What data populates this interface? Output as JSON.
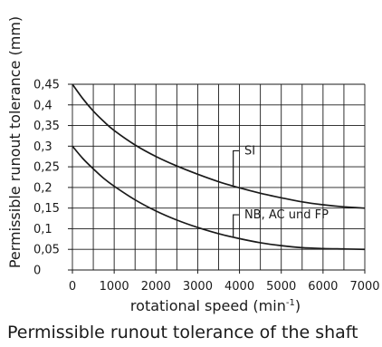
{
  "chart_data": {
    "type": "line",
    "ylabel": "Permissible runout tolerance (mm)",
    "xlabel_main": "rotational speed (min",
    "xlabel_sup": "-1",
    "xlabel_close": ")",
    "xlim": [
      0,
      7000
    ],
    "ylim": [
      0,
      0.45
    ],
    "x_ticks": [
      0,
      1000,
      2000,
      3000,
      4000,
      5000,
      6000,
      7000
    ],
    "x_tick_labels": [
      "0",
      "1000",
      "2000",
      "3000",
      "4000",
      "5000",
      "6000",
      "7000"
    ],
    "y_ticks": [
      0,
      0.05,
      0.1,
      0.15,
      0.2,
      0.25,
      0.3,
      0.35,
      0.4,
      0.45
    ],
    "y_tick_labels": [
      "0",
      "0,05",
      "0,1",
      "0,15",
      "0,2",
      "0,25",
      "0,3",
      "0,35",
      "0,4",
      "0,45"
    ],
    "grid": true,
    "series": [
      {
        "name": "SI",
        "x": [
          0,
          250,
          500,
          750,
          1000,
          1500,
          2000,
          2500,
          3000,
          3500,
          4000,
          4500,
          5000,
          5500,
          6000,
          6500,
          7000
        ],
        "y": [
          0.45,
          0.415,
          0.385,
          0.36,
          0.338,
          0.303,
          0.275,
          0.252,
          0.232,
          0.214,
          0.199,
          0.186,
          0.175,
          0.165,
          0.158,
          0.153,
          0.15
        ]
      },
      {
        "name": "NB, AC und FP",
        "x": [
          0,
          250,
          500,
          750,
          1000,
          1500,
          2000,
          2500,
          3000,
          3500,
          4000,
          4500,
          5000,
          5500,
          6000,
          6500,
          7000
        ],
        "y": [
          0.3,
          0.27,
          0.245,
          0.222,
          0.203,
          0.17,
          0.143,
          0.121,
          0.103,
          0.088,
          0.076,
          0.066,
          0.059,
          0.054,
          0.052,
          0.051,
          0.05
        ]
      }
    ]
  },
  "caption": "Permissible runout tolerance of the shaft"
}
